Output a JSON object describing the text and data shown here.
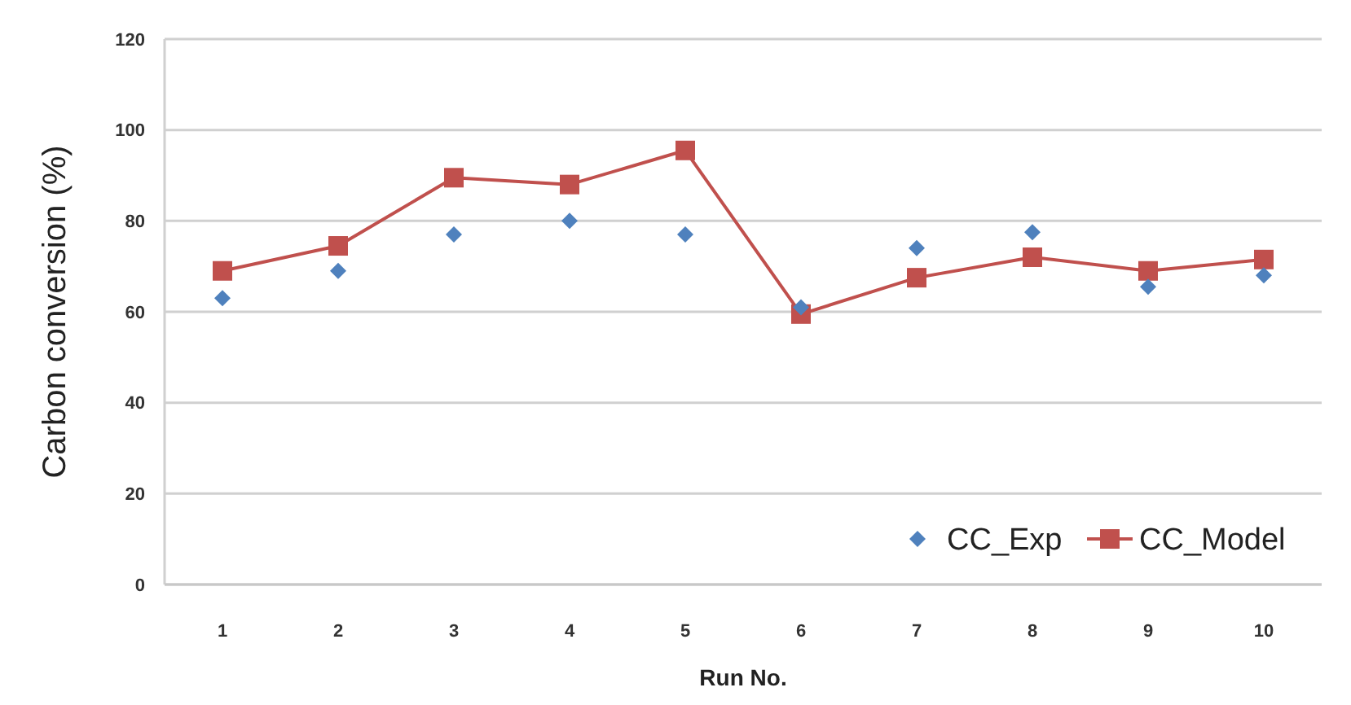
{
  "chart_data": {
    "type": "line",
    "xlabel": "Run No.",
    "ylabel": "Carbon conversion (%)",
    "categories": [
      "1",
      "2",
      "3",
      "4",
      "5",
      "6",
      "7",
      "8",
      "9",
      "10"
    ],
    "series": [
      {
        "name": "CC_Exp",
        "type": "scatter",
        "marker": "diamond",
        "color": "#4f81bd",
        "values": [
          63,
          69,
          77,
          80,
          77,
          61,
          74,
          77.5,
          65.5,
          68
        ]
      },
      {
        "name": "CC_Model",
        "marker": "square",
        "color": "#c0504d",
        "values": [
          69,
          74.5,
          89.5,
          88,
          95.5,
          59.5,
          67.5,
          72,
          69,
          71.5
        ]
      }
    ],
    "ylim": [
      0,
      120
    ],
    "yticks": [
      0,
      20,
      40,
      60,
      80,
      100,
      120
    ],
    "grid": "y",
    "legend": "bottom right"
  }
}
